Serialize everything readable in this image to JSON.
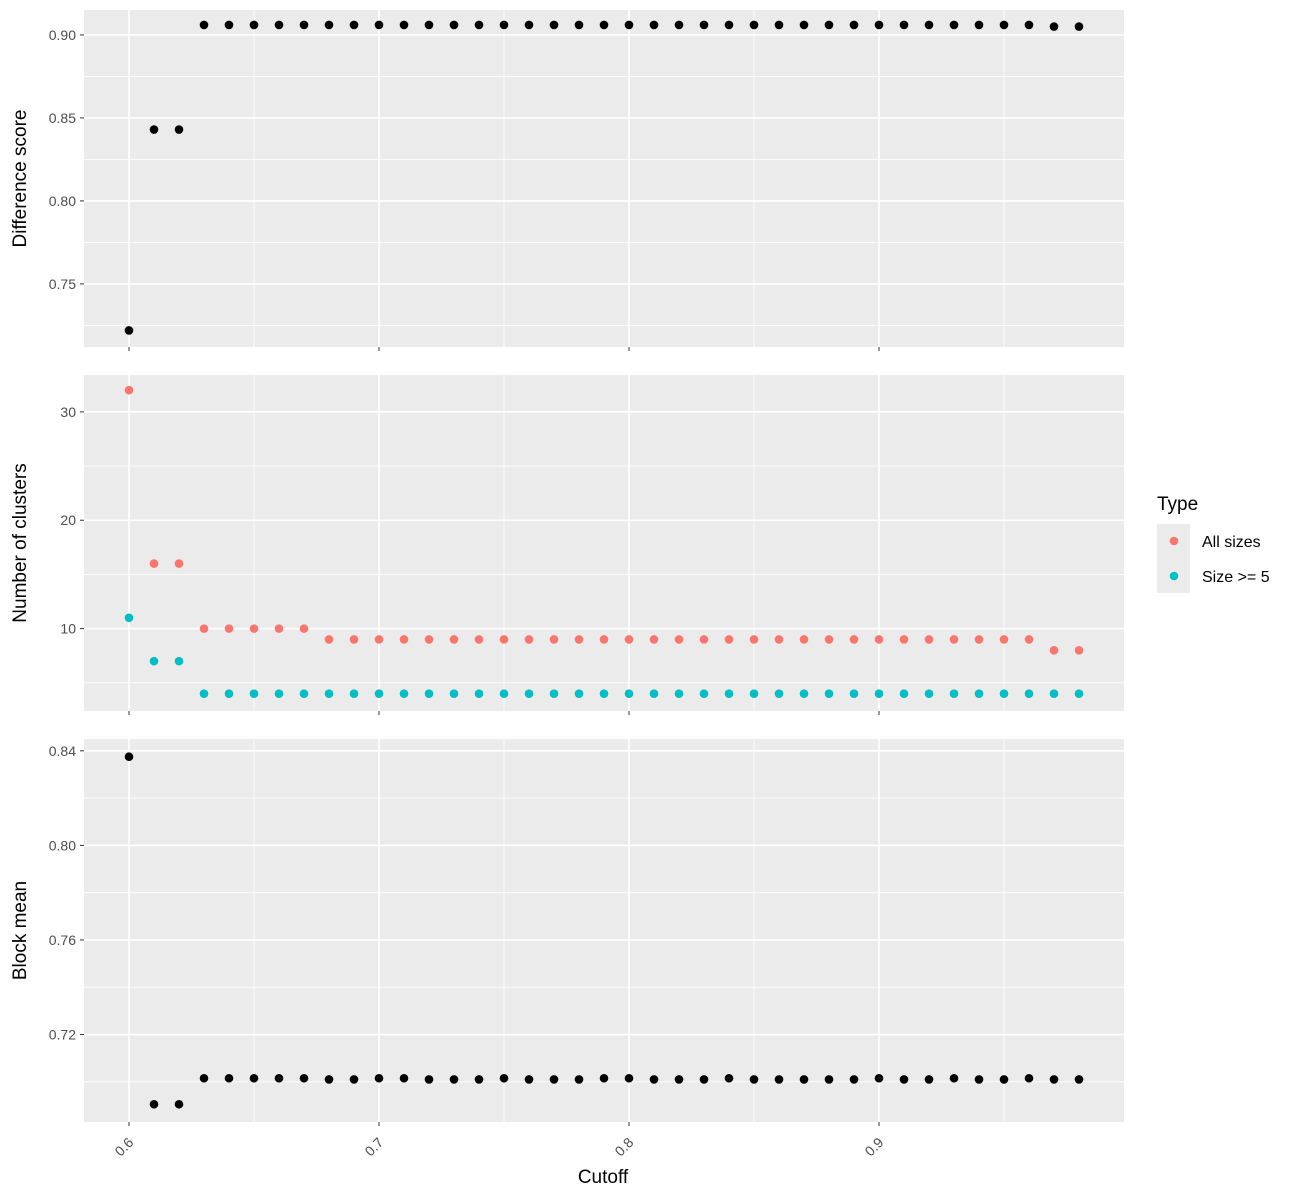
{
  "chart_data": {
    "type": "scatter",
    "shared_x": {
      "label": "Cutoff",
      "range": [
        0.582,
        0.998
      ],
      "ticks": [
        0.6,
        0.7,
        0.8,
        0.9
      ],
      "tick_labels": [
        "0.6",
        "0.7",
        "0.8",
        "0.9"
      ]
    },
    "legend": {
      "title": "Type",
      "placement": "right",
      "entries": [
        {
          "label": "All sizes",
          "color": "#F8766D"
        },
        {
          "label": "Size >= 5",
          "color": "#00BFC4"
        }
      ]
    },
    "panels": [
      {
        "ylabel": "Difference score",
        "ylim": [
          0.712,
          0.915
        ],
        "yticks": [
          0.75,
          0.8,
          0.85,
          0.9
        ],
        "ytick_labels": [
          "0.75",
          "0.80",
          "0.85",
          "0.90"
        ],
        "grid": true,
        "series": [
          {
            "color": "#000000",
            "x": [
              0.6,
              0.61,
              0.62,
              0.63,
              0.64,
              0.65,
              0.66,
              0.67,
              0.68,
              0.69,
              0.7,
              0.71,
              0.72,
              0.73,
              0.74,
              0.75,
              0.76,
              0.77,
              0.78,
              0.79,
              0.8,
              0.81,
              0.82,
              0.83,
              0.84,
              0.85,
              0.86,
              0.87,
              0.88,
              0.89,
              0.9,
              0.91,
              0.92,
              0.93,
              0.94,
              0.95,
              0.96,
              0.97,
              0.98
            ],
            "y": [
              0.722,
              0.843,
              0.843,
              0.906,
              0.906,
              0.906,
              0.906,
              0.906,
              0.906,
              0.906,
              0.906,
              0.906,
              0.906,
              0.906,
              0.906,
              0.906,
              0.906,
              0.906,
              0.906,
              0.906,
              0.906,
              0.906,
              0.906,
              0.906,
              0.906,
              0.906,
              0.906,
              0.906,
              0.906,
              0.906,
              0.906,
              0.906,
              0.906,
              0.906,
              0.906,
              0.906,
              0.906,
              0.905,
              0.905
            ]
          }
        ]
      },
      {
        "ylabel": "Number of clusters",
        "ylim": [
          2.4,
          33.4
        ],
        "yticks": [
          10,
          20,
          30
        ],
        "ytick_labels": [
          "10",
          "20",
          "30"
        ],
        "grid": true,
        "series": [
          {
            "name": "All sizes",
            "color": "#F8766D",
            "x": [
              0.6,
              0.61,
              0.62,
              0.63,
              0.64,
              0.65,
              0.66,
              0.67,
              0.68,
              0.69,
              0.7,
              0.71,
              0.72,
              0.73,
              0.74,
              0.75,
              0.76,
              0.77,
              0.78,
              0.79,
              0.8,
              0.81,
              0.82,
              0.83,
              0.84,
              0.85,
              0.86,
              0.87,
              0.88,
              0.89,
              0.9,
              0.91,
              0.92,
              0.93,
              0.94,
              0.95,
              0.96,
              0.97,
              0.98
            ],
            "y": [
              32,
              16,
              16,
              10,
              10,
              10,
              10,
              10,
              9,
              9,
              9,
              9,
              9,
              9,
              9,
              9,
              9,
              9,
              9,
              9,
              9,
              9,
              9,
              9,
              9,
              9,
              9,
              9,
              9,
              9,
              9,
              9,
              9,
              9,
              9,
              9,
              9,
              8,
              8
            ]
          },
          {
            "name": "Size >= 5",
            "color": "#00BFC4",
            "x": [
              0.6,
              0.61,
              0.62,
              0.63,
              0.64,
              0.65,
              0.66,
              0.67,
              0.68,
              0.69,
              0.7,
              0.71,
              0.72,
              0.73,
              0.74,
              0.75,
              0.76,
              0.77,
              0.78,
              0.79,
              0.8,
              0.81,
              0.82,
              0.83,
              0.84,
              0.85,
              0.86,
              0.87,
              0.88,
              0.89,
              0.9,
              0.91,
              0.92,
              0.93,
              0.94,
              0.95,
              0.96,
              0.97,
              0.98
            ],
            "y": [
              11,
              7,
              7,
              4,
              4,
              4,
              4,
              4,
              4,
              4,
              4,
              4,
              4,
              4,
              4,
              4,
              4,
              4,
              4,
              4,
              4,
              4,
              4,
              4,
              4,
              4,
              4,
              4,
              4,
              4,
              4,
              4,
              4,
              4,
              4,
              4,
              4,
              4,
              4
            ]
          }
        ]
      },
      {
        "ylabel": "Block mean",
        "ylim": [
          0.683,
          0.845
        ],
        "yticks": [
          0.72,
          0.76,
          0.8,
          0.84
        ],
        "ytick_labels": [
          "0.72",
          "0.76",
          "0.80",
          "0.84"
        ],
        "grid": true,
        "series": [
          {
            "color": "#000000",
            "x": [
              0.6,
              0.61,
              0.62,
              0.63,
              0.64,
              0.65,
              0.66,
              0.67,
              0.68,
              0.69,
              0.7,
              0.71,
              0.72,
              0.73,
              0.74,
              0.75,
              0.76,
              0.77,
              0.78,
              0.79,
              0.8,
              0.81,
              0.82,
              0.83,
              0.84,
              0.85,
              0.86,
              0.87,
              0.88,
              0.89,
              0.9,
              0.91,
              0.92,
              0.93,
              0.94,
              0.95,
              0.96,
              0.97,
              0.98
            ],
            "y": [
              0.8375,
              0.6905,
              0.6905,
              0.7015,
              0.7015,
              0.7015,
              0.7015,
              0.7015,
              0.701,
              0.701,
              0.7015,
              0.7015,
              0.701,
              0.701,
              0.701,
              0.7015,
              0.701,
              0.701,
              0.701,
              0.7015,
              0.7015,
              0.701,
              0.701,
              0.701,
              0.7015,
              0.701,
              0.701,
              0.701,
              0.701,
              0.701,
              0.7015,
              0.701,
              0.701,
              0.7015,
              0.701,
              0.701,
              0.7015,
              0.701,
              0.701
            ]
          }
        ]
      }
    ]
  }
}
